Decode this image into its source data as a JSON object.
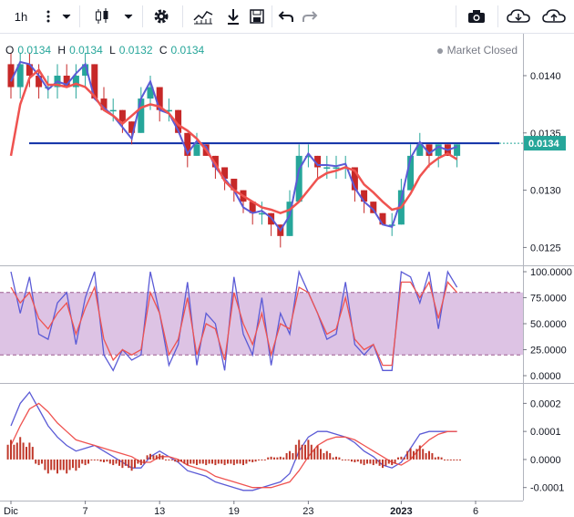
{
  "toolbar": {
    "interval_label": "1h",
    "icons": [
      "more-vertical-icon",
      "chevron-down-icon",
      "candlestick-icon",
      "chevron-down-icon",
      "gear-icon",
      "indicators-icon",
      "download-icon",
      "save-icon",
      "undo-icon",
      "redo-icon",
      "camera-icon",
      "cloud-download-icon",
      "cloud-upload-icon"
    ]
  },
  "legend": {
    "open_key": "O",
    "open": "0.0134",
    "high_key": "H",
    "high": "0.0134",
    "low_key": "L",
    "low": "0.0132",
    "close_key": "C",
    "close": "0.0134"
  },
  "status": {
    "text": "Market Closed"
  },
  "colors": {
    "up": "#26a69a",
    "down": "#c62828",
    "ma_fast": "#5b5bd6",
    "ma_slow": "#ef5350",
    "hline": "#0d2ea6",
    "rsi_band": "#d5b4dd"
  },
  "chart_data": [
    {
      "type": "candlestick",
      "price_label": "0.0134",
      "hline": 0.01341,
      "ylim": [
        0.01236,
        0.01435
      ],
      "y_ticks": [
        "0.0140",
        "0.0135",
        "0.0130",
        "0.0125"
      ],
      "y_tick_values": [
        0.014,
        0.0135,
        0.013,
        0.0125
      ],
      "series": [
        {
          "name": "",
          "kind": "ma_fast",
          "points": [
            [
              0,
              0.01395
            ],
            [
              1,
              0.01412
            ],
            [
              2,
              0.0141
            ],
            [
              3,
              0.014
            ],
            [
              4,
              0.01388
            ],
            [
              5,
              0.01395
            ],
            [
              6,
              0.01392
            ],
            [
              7,
              0.01402
            ],
            [
              8,
              0.0141
            ],
            [
              9,
              0.0138
            ],
            [
              10,
              0.01372
            ],
            [
              11,
              0.01365
            ],
            [
              12,
              0.01355
            ],
            [
              13,
              0.01345
            ],
            [
              14,
              0.0138
            ],
            [
              15,
              0.01395
            ],
            [
              16,
              0.0137
            ],
            [
              17,
              0.01367
            ],
            [
              18,
              0.01352
            ],
            [
              19,
              0.01332
            ],
            [
              20,
              0.01343
            ],
            [
              21,
              0.01338
            ],
            [
              22,
              0.0132
            ],
            [
              23,
              0.0131
            ],
            [
              24,
              0.013
            ],
            [
              25,
              0.01285
            ],
            [
              26,
              0.0128
            ],
            [
              27,
              0.01282
            ],
            [
              28,
              0.01276
            ],
            [
              29,
              0.01265
            ],
            [
              30,
              0.01278
            ],
            [
              31,
              0.01318
            ],
            [
              32,
              0.01332
            ],
            [
              33,
              0.01322
            ],
            [
              34,
              0.01322
            ],
            [
              35,
              0.01321
            ],
            [
              36,
              0.01323
            ],
            [
              37,
              0.01302
            ],
            [
              38,
              0.0129
            ],
            [
              39,
              0.01283
            ],
            [
              40,
              0.0127
            ],
            [
              41,
              0.01268
            ],
            [
              42,
              0.01292
            ],
            [
              43,
              0.01328
            ],
            [
              44,
              0.01342
            ],
            [
              45,
              0.01332
            ],
            [
              46,
              0.01338
            ],
            [
              47,
              0.01335
            ],
            [
              48,
              0.01338
            ]
          ]
        },
        {
          "name": "",
          "kind": "ma_slow",
          "points": [
            [
              0,
              0.0133
            ],
            [
              1,
              0.01375
            ],
            [
              2,
              0.01398
            ],
            [
              3,
              0.01405
            ],
            [
              4,
              0.01392
            ],
            [
              5,
              0.01392
            ],
            [
              6,
              0.0139
            ],
            [
              7,
              0.01393
            ],
            [
              8,
              0.0139
            ],
            [
              9,
              0.01382
            ],
            [
              10,
              0.0137
            ],
            [
              11,
              0.01365
            ],
            [
              12,
              0.01358
            ],
            [
              13,
              0.01365
            ],
            [
              14,
              0.01372
            ],
            [
              15,
              0.01375
            ],
            [
              16,
              0.01373
            ],
            [
              17,
              0.01367
            ],
            [
              18,
              0.01357
            ],
            [
              19,
              0.01352
            ],
            [
              20,
              0.01345
            ],
            [
              21,
              0.01335
            ],
            [
              22,
              0.01323
            ],
            [
              23,
              0.01308
            ],
            [
              24,
              0.013
            ],
            [
              25,
              0.01295
            ],
            [
              26,
              0.0129
            ],
            [
              27,
              0.01285
            ],
            [
              28,
              0.01283
            ],
            [
              29,
              0.0128
            ],
            [
              30,
              0.01283
            ],
            [
              31,
              0.0129
            ],
            [
              32,
              0.013
            ],
            [
              33,
              0.0131
            ],
            [
              34,
              0.01315
            ],
            [
              35,
              0.01317
            ],
            [
              36,
              0.0132
            ],
            [
              37,
              0.01317
            ],
            [
              38,
              0.01305
            ],
            [
              39,
              0.01298
            ],
            [
              40,
              0.0129
            ],
            [
              41,
              0.01283
            ],
            [
              42,
              0.01285
            ],
            [
              43,
              0.01297
            ],
            [
              44,
              0.01312
            ],
            [
              45,
              0.01322
            ],
            [
              46,
              0.01328
            ],
            [
              47,
              0.01332
            ],
            [
              48,
              0.01327
            ]
          ]
        }
      ],
      "candles": [
        [
          0.0141,
          0.0142,
          0.0138,
          0.0139
        ],
        [
          0.0139,
          0.0142,
          0.0138,
          0.0141
        ],
        [
          0.0141,
          0.0142,
          0.0139,
          0.014
        ],
        [
          0.014,
          0.0141,
          0.0138,
          0.0139
        ],
        [
          0.0139,
          0.014,
          0.0138,
          0.0139
        ],
        [
          0.0139,
          0.0141,
          0.0138,
          0.014
        ],
        [
          0.014,
          0.0141,
          0.0139,
          0.0139
        ],
        [
          0.0139,
          0.0141,
          0.0138,
          0.014
        ],
        [
          0.014,
          0.0142,
          0.0139,
          0.0141
        ],
        [
          0.0141,
          0.0141,
          0.0138,
          0.0138
        ],
        [
          0.0138,
          0.0139,
          0.0137,
          0.0137
        ],
        [
          0.0137,
          0.0138,
          0.0136,
          0.0137
        ],
        [
          0.0137,
          0.0137,
          0.0135,
          0.0136
        ],
        [
          0.0136,
          0.0136,
          0.0134,
          0.0135
        ],
        [
          0.0135,
          0.0139,
          0.0135,
          0.0138
        ],
        [
          0.0138,
          0.014,
          0.0137,
          0.0139
        ],
        [
          0.0139,
          0.0139,
          0.0136,
          0.0137
        ],
        [
          0.0137,
          0.0138,
          0.0136,
          0.0137
        ],
        [
          0.0137,
          0.0137,
          0.0135,
          0.0135
        ],
        [
          0.0135,
          0.0135,
          0.0132,
          0.0133
        ],
        [
          0.0133,
          0.0135,
          0.0133,
          0.0134
        ],
        [
          0.0134,
          0.0134,
          0.0133,
          0.0133
        ],
        [
          0.0133,
          0.0133,
          0.0131,
          0.0132
        ],
        [
          0.0132,
          0.0132,
          0.013,
          0.0131
        ],
        [
          0.0131,
          0.0131,
          0.0129,
          0.013
        ],
        [
          0.013,
          0.013,
          0.0128,
          0.0129
        ],
        [
          0.0129,
          0.0129,
          0.0127,
          0.0128
        ],
        [
          0.0128,
          0.0129,
          0.0127,
          0.0128
        ],
        [
          0.0128,
          0.0128,
          0.0126,
          0.0127
        ],
        [
          0.0127,
          0.0127,
          0.0125,
          0.0126
        ],
        [
          0.0126,
          0.013,
          0.0126,
          0.0129
        ],
        [
          0.0129,
          0.0134,
          0.0129,
          0.0133
        ],
        [
          0.0133,
          0.0134,
          0.0132,
          0.0133
        ],
        [
          0.0133,
          0.0133,
          0.0131,
          0.0132
        ],
        [
          0.0132,
          0.0133,
          0.0131,
          0.0132
        ],
        [
          0.0132,
          0.0133,
          0.0131,
          0.0132
        ],
        [
          0.0132,
          0.0133,
          0.0131,
          0.0132
        ],
        [
          0.0132,
          0.0132,
          0.0129,
          0.013
        ],
        [
          0.013,
          0.013,
          0.0128,
          0.0129
        ],
        [
          0.0129,
          0.0129,
          0.0128,
          0.0128
        ],
        [
          0.0128,
          0.0128,
          0.0127,
          0.0127
        ],
        [
          0.0127,
          0.0128,
          0.0126,
          0.0127
        ],
        [
          0.0127,
          0.0131,
          0.0127,
          0.013
        ],
        [
          0.013,
          0.0134,
          0.013,
          0.0133
        ],
        [
          0.0133,
          0.0135,
          0.0133,
          0.0134
        ],
        [
          0.0134,
          0.0134,
          0.0132,
          0.0133
        ],
        [
          0.0133,
          0.0134,
          0.0132,
          0.0134
        ],
        [
          0.0134,
          0.0134,
          0.0133,
          0.0133
        ],
        [
          0.0133,
          0.0134,
          0.0132,
          0.0134
        ]
      ]
    },
    {
      "type": "line",
      "ylim": [
        0,
        100
      ],
      "y_ticks": [
        "100.0000",
        "75.0000",
        "50.0000",
        "25.0000",
        "0.0000"
      ],
      "y_tick_values": [
        100,
        75,
        50,
        25,
        0
      ],
      "band": [
        20,
        80
      ],
      "series": [
        {
          "name": "",
          "kind": "fast",
          "values": [
            100,
            60,
            95,
            40,
            35,
            70,
            80,
            30,
            75,
            100,
            20,
            5,
            25,
            15,
            20,
            100,
            60,
            10,
            30,
            90,
            10,
            60,
            50,
            5,
            95,
            40,
            20,
            75,
            10,
            60,
            40,
            100,
            80,
            60,
            35,
            40,
            90,
            30,
            20,
            30,
            5,
            5,
            100,
            95,
            70,
            100,
            45,
            100,
            85
          ]
        },
        {
          "name": "",
          "kind": "slow",
          "values": [
            85,
            70,
            80,
            55,
            45,
            60,
            70,
            40,
            65,
            85,
            35,
            15,
            25,
            20,
            25,
            80,
            60,
            20,
            35,
            75,
            20,
            50,
            45,
            15,
            80,
            50,
            30,
            60,
            20,
            50,
            45,
            85,
            80,
            60,
            40,
            45,
            75,
            35,
            25,
            30,
            10,
            10,
            90,
            90,
            75,
            90,
            55,
            90,
            80
          ]
        }
      ]
    },
    {
      "type": "bar",
      "ylim": [
        -0.00014,
        0.00025
      ],
      "y_ticks": [
        "0.0002",
        "0.0001",
        "0.0000",
        "-0.0001"
      ],
      "y_tick_values": [
        0.0002,
        0.0001,
        0,
        -0.0001
      ],
      "x_tick_labels": [
        "Dic",
        "7",
        "13",
        "19",
        "23",
        "2023",
        "6"
      ],
      "x_tick_positions": [
        0,
        8,
        16,
        24,
        32,
        42,
        50
      ],
      "series": [
        {
          "name": "",
          "kind": "macd",
          "values": [
            0.00012,
            0.0002,
            0.00024,
            0.00018,
            0.00012,
            8e-05,
            5e-05,
            3e-05,
            4e-05,
            5e-05,
            3e-05,
            1e-05,
            -1e-05,
            -3e-05,
            -3e-05,
            1e-05,
            3e-05,
            1e-05,
            -1e-05,
            -4e-05,
            -5e-05,
            -6e-05,
            -8e-05,
            -9e-05,
            -0.0001,
            -0.00011,
            -0.00011,
            -0.0001,
            -9e-05,
            -8e-05,
            -5e-05,
            3e-05,
            8e-05,
            0.0001,
            0.0001,
            9e-05,
            8e-05,
            6e-05,
            3e-05,
            1e-05,
            -2e-05,
            -3e-05,
            -1e-05,
            4e-05,
            9e-05,
            0.0001,
            0.0001,
            0.0001,
            0.0001
          ]
        },
        {
          "name": "",
          "kind": "signal",
          "values": [
            5e-05,
            0.00012,
            0.00018,
            0.0002,
            0.00017,
            0.00013,
            0.0001,
            7e-05,
            6e-05,
            5e-05,
            4e-05,
            3e-05,
            2e-05,
            1e-05,
            -1e-05,
            -1e-05,
            1e-05,
            1e-05,
            0,
            -2e-05,
            -3e-05,
            -4e-05,
            -6e-05,
            -7e-05,
            -8e-05,
            -9e-05,
            -0.0001,
            -0.0001,
            -0.0001,
            -9e-05,
            -8e-05,
            -4e-05,
            1e-05,
            5e-05,
            7e-05,
            8e-05,
            8e-05,
            7e-05,
            5e-05,
            3e-05,
            1e-05,
            -1e-05,
            -2e-05,
            0,
            4e-05,
            7e-05,
            9e-05,
            0.0001,
            0.0001
          ]
        },
        {
          "name": "",
          "kind": "histogram",
          "values": [
            7e-05,
            8e-05,
            6e-05,
            -2e-05,
            -5e-05,
            -5e-05,
            -5e-05,
            -4e-05,
            -2e-05,
            0,
            -1e-05,
            -2e-05,
            -3e-05,
            -4e-05,
            -2e-05,
            2e-05,
            2e-05,
            0,
            -1e-05,
            -2e-05,
            -2e-05,
            -2e-05,
            -2e-05,
            -2e-05,
            -2e-05,
            -2e-05,
            -1e-05,
            0,
            1e-05,
            1e-05,
            3e-05,
            7e-05,
            7e-05,
            5e-05,
            3e-05,
            1e-05,
            0,
            -1e-05,
            -2e-05,
            -2e-05,
            -3e-05,
            -2e-05,
            1e-05,
            4e-05,
            5e-05,
            3e-05,
            1e-05,
            0,
            0
          ]
        }
      ]
    }
  ]
}
